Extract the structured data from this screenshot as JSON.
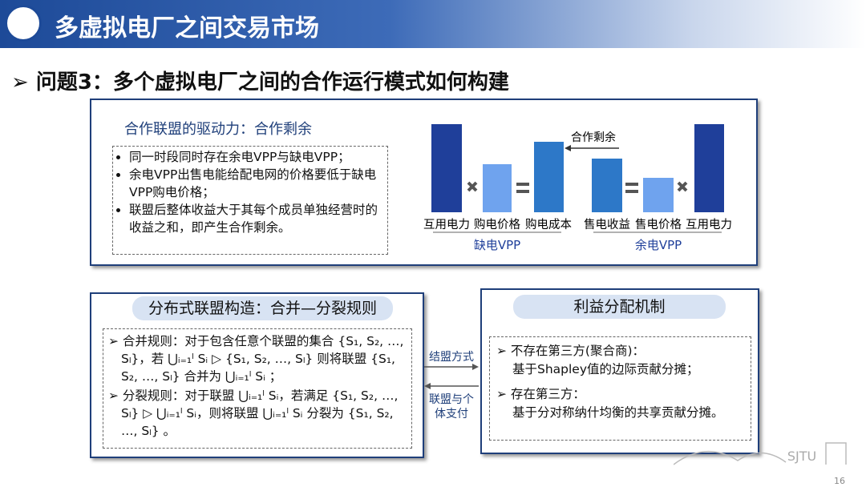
{
  "header": {
    "title": "多虚拟电厂之间交易市场"
  },
  "question": "问题3：多个虚拟电厂之间的合作运行模式如何构建",
  "driver_box": {
    "title": "合作联盟的驱动力：合作剩余",
    "bullets": [
      "同一时段同时存在余电VPP与缺电VPP；",
      "余电VPP出售电能给配电网的价格要低于缺电VPP购电价格；",
      "联盟后整体收益大于其每个成员单独经营时的收益之和，即产生合作剩余。"
    ],
    "figure": {
      "categories": [
        "互用电力",
        "购电价格",
        "购电成本",
        "售电收益",
        "售电价格",
        "互用电力"
      ],
      "groups": [
        "缺电VPP",
        "余电VPP"
      ],
      "arrow_label": "合作剩余"
    }
  },
  "coalition_box": {
    "title": "分布式联盟构造：合并—分裂规则",
    "rules": [
      "合并规则：对于包含任意个联盟的集合 {S₁, S₂, …, Sₗ}，若 ⋃ᵢ₌₁ˡ Sᵢ ▷ {S₁, S₂, …, Sₗ} 则将联盟 {S₁, S₂, …, Sₗ} 合并为 ⋃ᵢ₌₁ˡ Sᵢ ；",
      "分裂规则：对于联盟 ⋃ᵢ₌₁ˡ Sᵢ，若满足 {S₁, S₂, …, Sₗ} ▷ ⋃ᵢ₌₁ˡ Sᵢ，则将联盟 ⋃ᵢ₌₁ˡ Sᵢ 分裂为 {S₁, S₂, …, Sₗ} 。"
    ]
  },
  "connectors": [
    "结盟方式",
    "联盟与个体支付"
  ],
  "allocation_box": {
    "title": "利益分配机制",
    "items": [
      {
        "head": "不存在第三方(聚合商)：",
        "body": "基于Shapley值的边际贡献分摊；"
      },
      {
        "head": "存在第三方：",
        "body": "基于分对称纳什均衡的共享贡献分摊。"
      }
    ]
  },
  "footer": {
    "logo_text": "SJTU",
    "page_number": "16"
  }
}
